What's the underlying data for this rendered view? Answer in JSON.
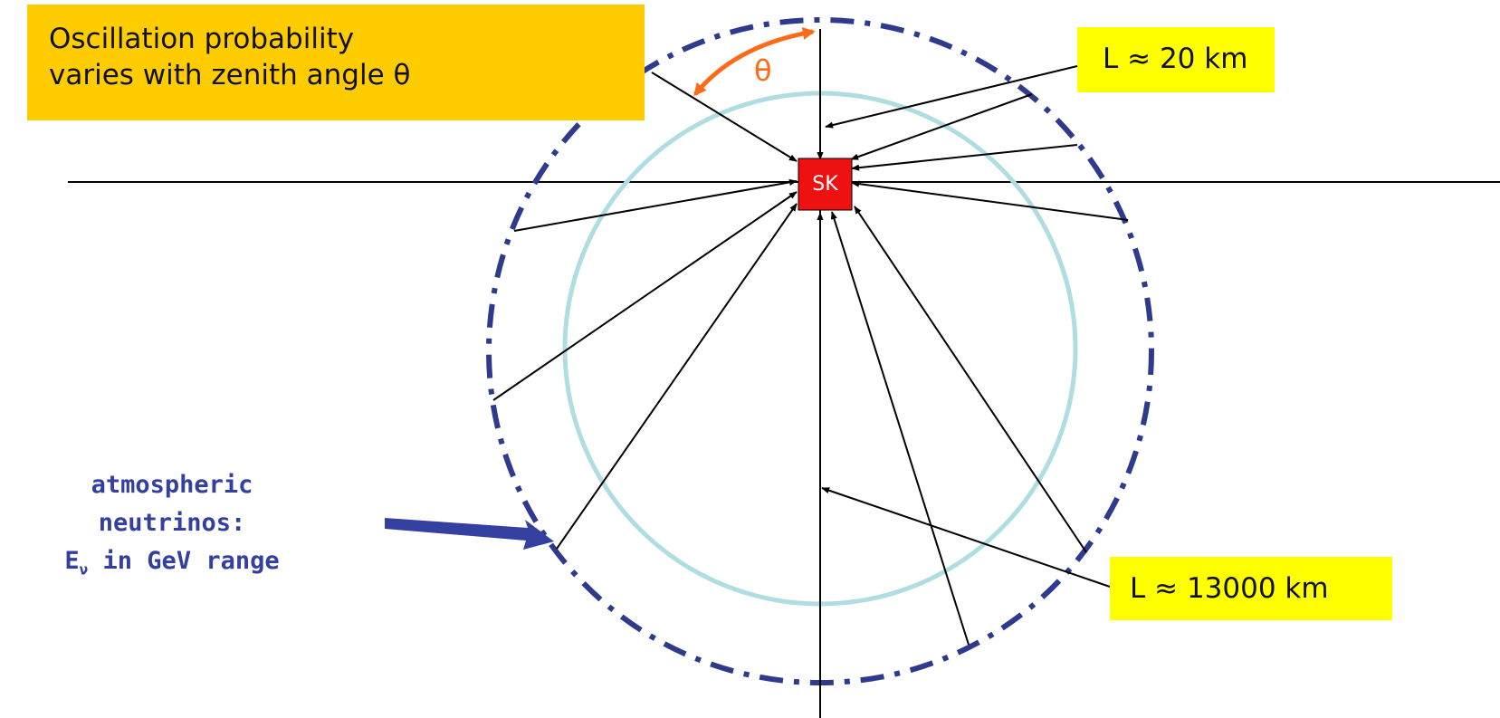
{
  "title": {
    "line1": "Oscillation probability",
    "line2": "varies with zenith angle θ"
  },
  "angle_symbol": "θ",
  "detector_label": "SK",
  "short_baseline": "L ≈ 20 km",
  "long_baseline": "L ≈ 13000 km",
  "neutrino_note": {
    "line1": "atmospheric",
    "line2": "neutrinos:",
    "energy_symbol": "E",
    "energy_subscript": "ν",
    "energy_text": " in GeV range"
  },
  "colors": {
    "title_bg": "#ffcc00",
    "baseline_bg": "#ffff00",
    "detector": "#ee1111",
    "inner_circle": "#b0dde2",
    "atmosphere_circle": "#2e3a8c",
    "angle_arc": "#ff6a1a",
    "neutrino_arrow": "#3340a0",
    "neutrino_text": "#3340a0"
  }
}
